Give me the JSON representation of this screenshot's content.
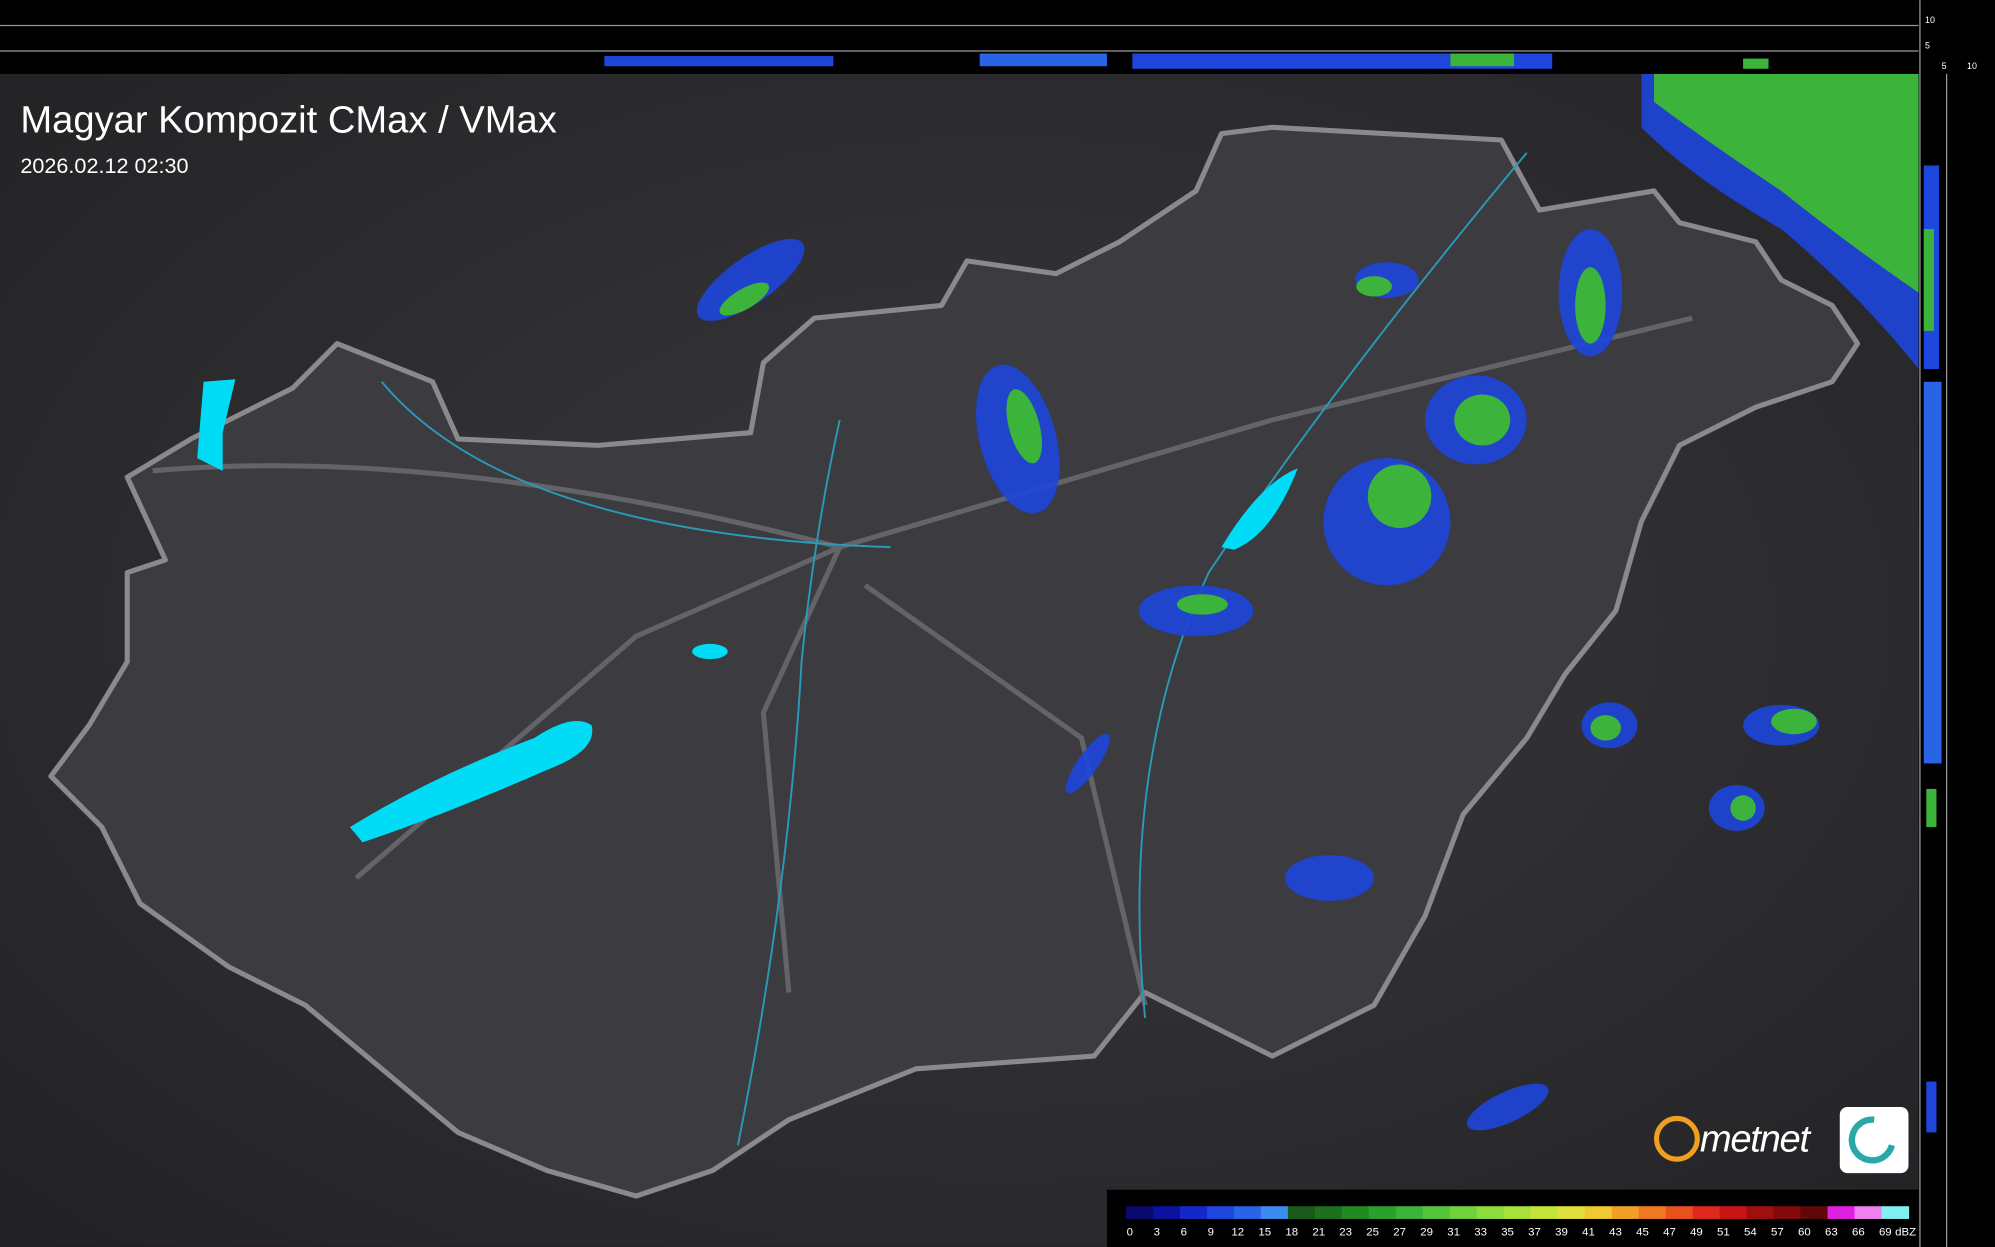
{
  "header": {
    "title": "Magyar Kompozit CMax / VMax",
    "timestamp": "2026.02.12 02:30"
  },
  "legend": {
    "labels": [
      0,
      3,
      6,
      9,
      12,
      15,
      18,
      21,
      23,
      25,
      27,
      29,
      31,
      33,
      35,
      37,
      39,
      41,
      43,
      45,
      47,
      49,
      51,
      54,
      57,
      60,
      63,
      66,
      69
    ],
    "unit": "dBZ",
    "colors": [
      "#0a0a6e",
      "#0c12a0",
      "#1428c8",
      "#1e46dc",
      "#2a64e6",
      "#3c8cf0",
      "#1a5a1a",
      "#1e701e",
      "#228a22",
      "#2ca02c",
      "#3cb43c",
      "#54c43c",
      "#70d23c",
      "#8cdc3c",
      "#a8e03c",
      "#c4e43c",
      "#e0e03c",
      "#f0c832",
      "#f0a028",
      "#f07820",
      "#e8501e",
      "#e0281e",
      "#c81414",
      "#a00f0f",
      "#800a0a",
      "#600808",
      "#e020e0",
      "#f080f0",
      "#80f0f0"
    ]
  },
  "side_scale": {
    "top_labels": [
      10,
      5
    ],
    "right_labels": [
      5,
      10
    ]
  },
  "logo": {
    "text": "metnet"
  }
}
